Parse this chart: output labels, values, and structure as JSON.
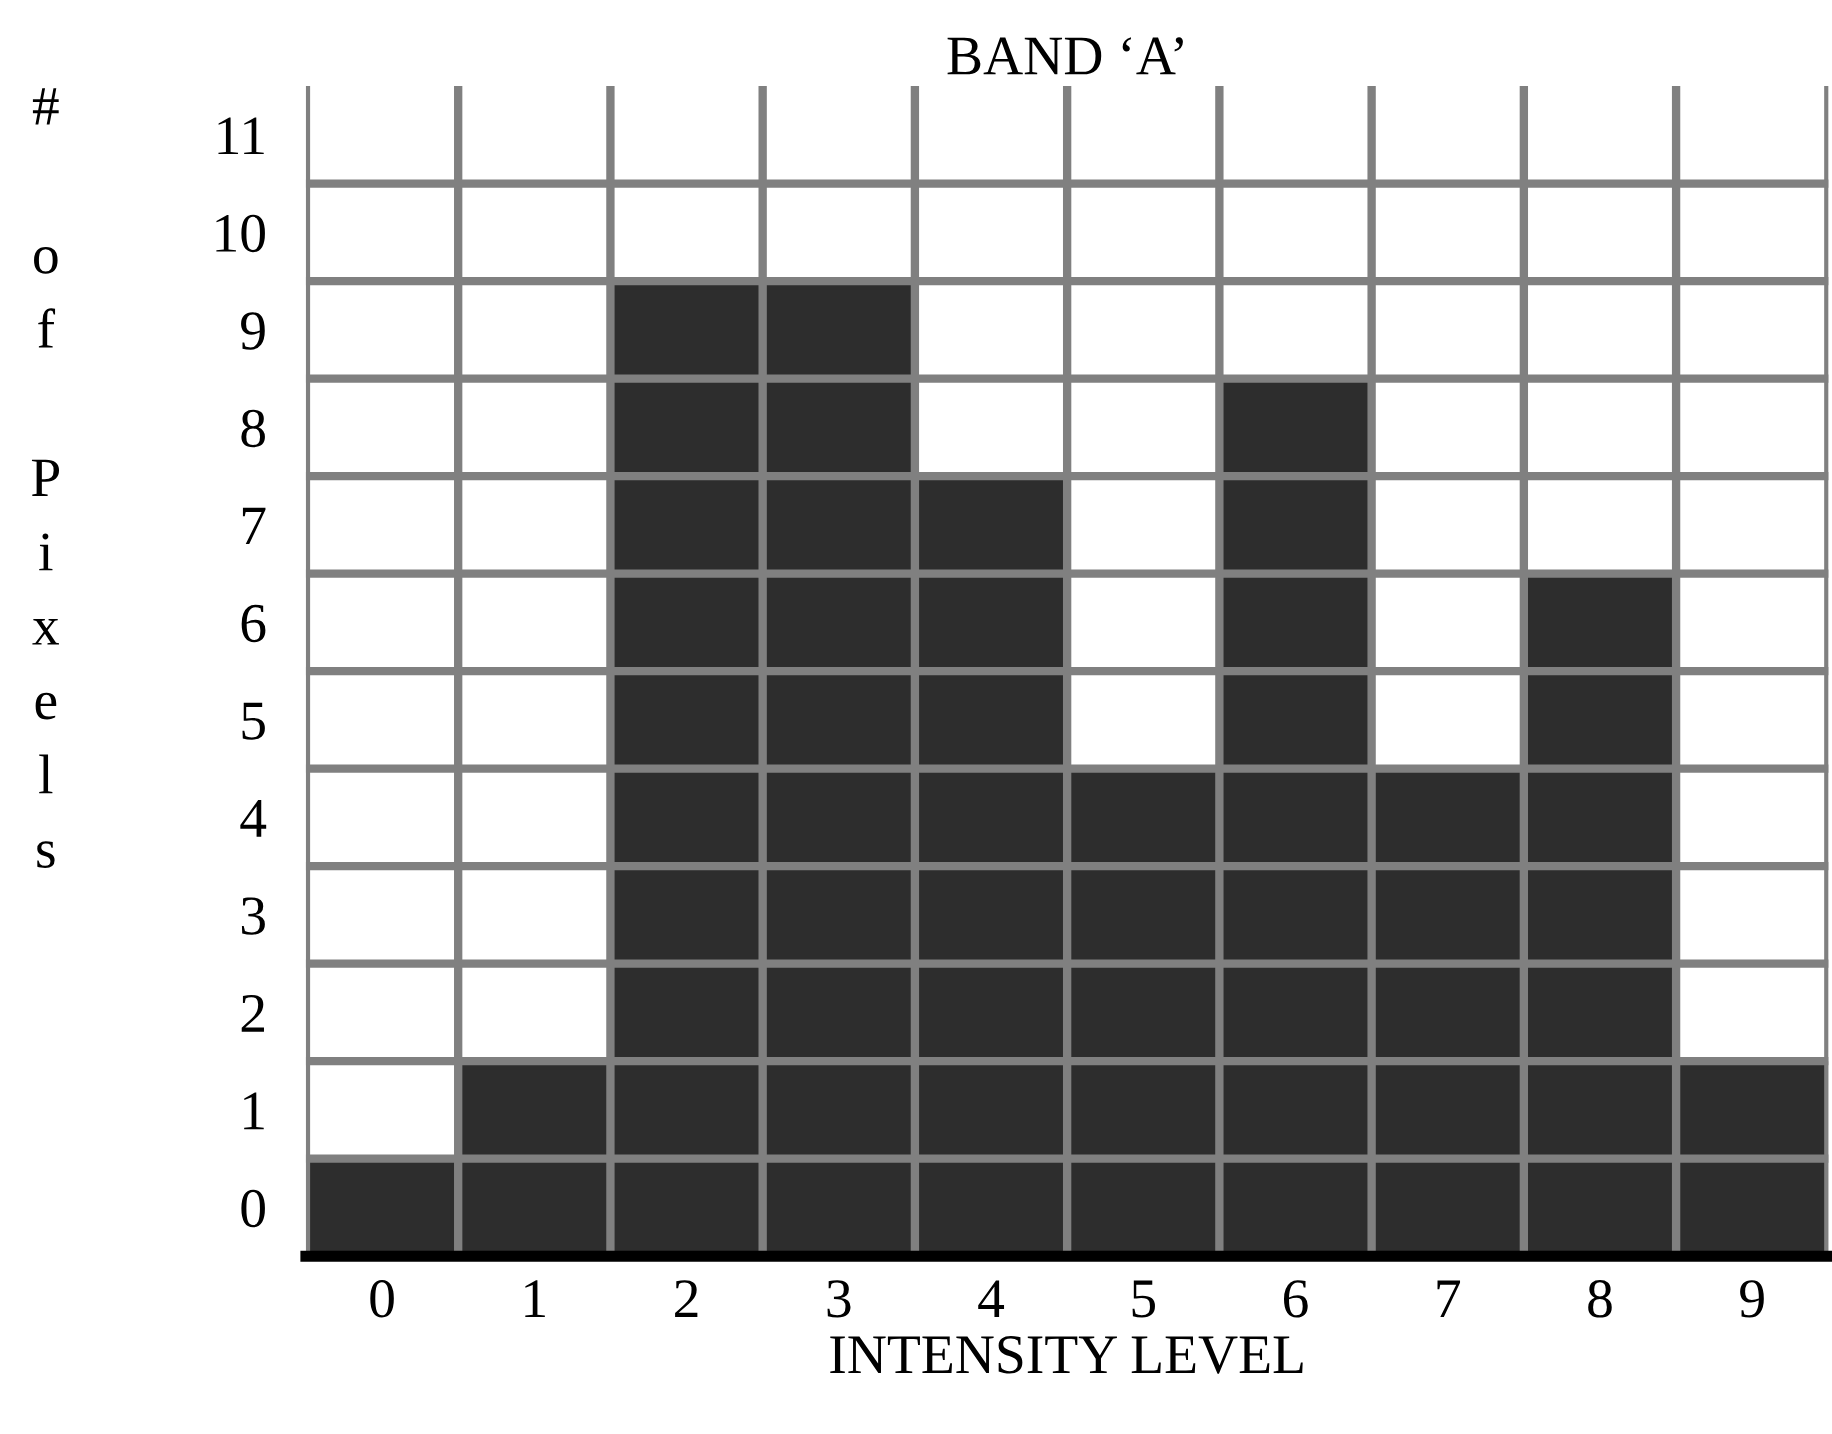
{
  "chart_data": {
    "type": "bar",
    "title": "BAND ‘A’",
    "xlabel": "INTENSITY LEVEL",
    "ylabel": "# of Pixels",
    "categories": [
      "0",
      "1",
      "2",
      "3",
      "4",
      "5",
      "6",
      "7",
      "8",
      "9"
    ],
    "values": [
      1,
      2,
      10,
      10,
      8,
      5,
      9,
      5,
      7,
      2
    ],
    "color": "#2d2d2d",
    "grid": true,
    "ylim": [
      0,
      12
    ],
    "yticks": [
      0,
      1,
      2,
      3,
      4,
      5,
      6,
      7,
      8,
      9,
      10,
      11
    ]
  }
}
